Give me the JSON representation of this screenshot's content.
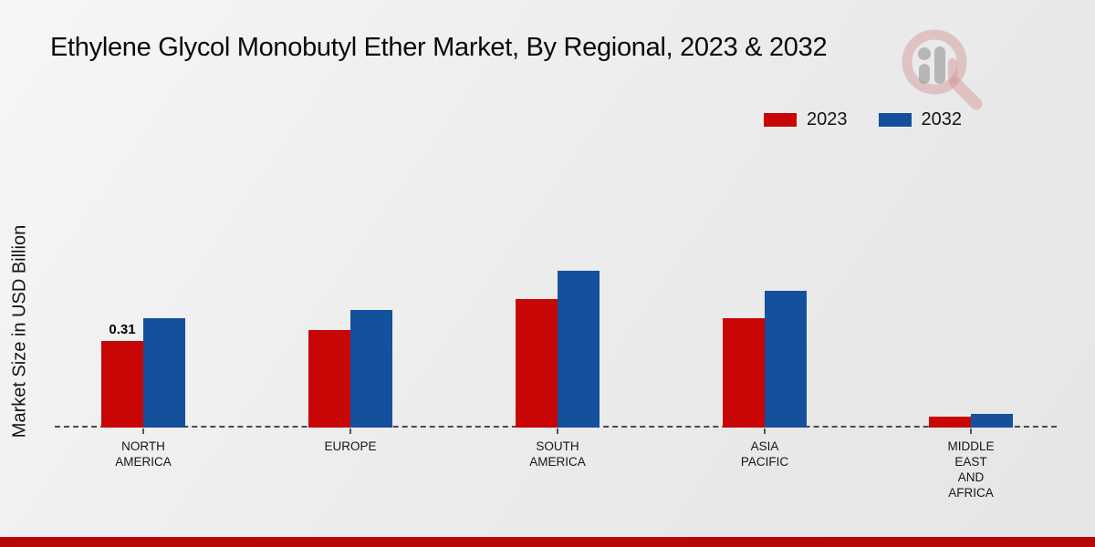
{
  "page": {
    "title": "Ethylene Glycol Monobutyl Ether Market, By Regional, 2023 & 2032",
    "y_axis_label": "Market Size in USD Billion"
  },
  "legend": [
    {
      "label": "2023",
      "color": "#c90606"
    },
    {
      "label": "2032",
      "color": "#15509c"
    }
  ],
  "colors": {
    "series_2023": "#c90606",
    "series_2032": "#15509c",
    "footer_strip": "#b90606",
    "baseline_dash": "#4a4a4a",
    "background": "#ececec",
    "text": "#141414"
  },
  "icons": {
    "watermark": "magnifier-bar-chart-logo"
  },
  "chart_data": {
    "type": "bar",
    "title": "Ethylene Glycol Monobutyl Ether Market, By Regional, 2023 & 2032",
    "xlabel": "",
    "ylabel": "Market Size in USD Billion",
    "categories": [
      "North America",
      "Europe",
      "South America",
      "Asia Pacific",
      "Middle East and Africa"
    ],
    "category_label_lines": [
      [
        "NORTH",
        "AMERICA"
      ],
      [
        "EUROPE"
      ],
      [
        "SOUTH",
        "AMERICA"
      ],
      [
        "ASIA",
        "PACIFIC"
      ],
      [
        "MIDDLE",
        "EAST",
        "AND",
        "AFRICA"
      ]
    ],
    "series": [
      {
        "name": "2023",
        "color": "#c90606",
        "values": [
          0.31,
          0.35,
          0.46,
          0.39,
          0.04
        ]
      },
      {
        "name": "2032",
        "color": "#15509c",
        "values": [
          0.39,
          0.42,
          0.56,
          0.49,
          0.05
        ]
      }
    ],
    "data_labels": [
      {
        "series": "2023",
        "category": "North America",
        "text": "0.31"
      }
    ],
    "ylim": [
      0,
      0.65
    ],
    "grid": false,
    "axis_style": "dashed-baseline-only",
    "legend_position": "top-right"
  }
}
